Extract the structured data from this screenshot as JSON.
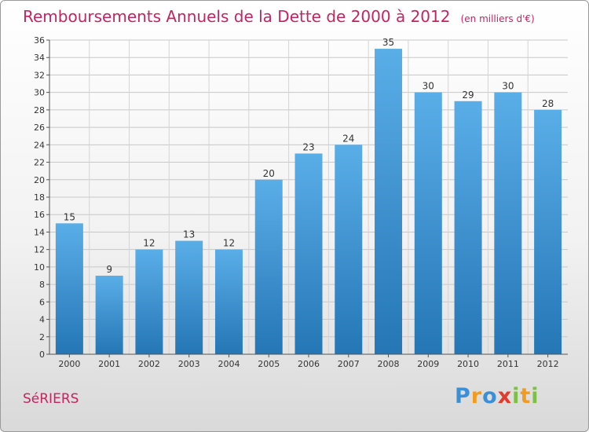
{
  "chart_data": {
    "type": "bar",
    "title": "Remboursements Annuels de la Dette de 2000 à 2012",
    "subtitle": "(en milliers d'€)",
    "categories": [
      "2000",
      "2001",
      "2002",
      "2003",
      "2004",
      "2005",
      "2006",
      "2007",
      "2008",
      "2009",
      "2010",
      "2011",
      "2012"
    ],
    "values": [
      15,
      9,
      12,
      13,
      12,
      20,
      23,
      24,
      35,
      30,
      29,
      30,
      28
    ],
    "ylim": [
      0,
      36
    ],
    "yticks": [
      0,
      2,
      4,
      6,
      8,
      10,
      12,
      14,
      16,
      18,
      20,
      22,
      24,
      26,
      28,
      30,
      32,
      34,
      36
    ],
    "grid": true,
    "legend": "none"
  },
  "commune": "SéRIERS",
  "brand": {
    "letters": [
      {
        "ch": "P",
        "color": "#3a8fd6"
      },
      {
        "ch": "r",
        "color": "#f29b1e"
      },
      {
        "ch": "o",
        "color": "#3a8fd6"
      },
      {
        "ch": "x",
        "color": "#e23b2e"
      },
      {
        "ch": "i",
        "color": "#7cc142"
      },
      {
        "ch": "t",
        "color": "#f29b1e"
      },
      {
        "ch": "i",
        "color": "#7cc142"
      }
    ]
  },
  "colors": {
    "accent": "#c5245f",
    "bar_top": "#5aaee8",
    "bar_bottom": "#2476b5"
  }
}
